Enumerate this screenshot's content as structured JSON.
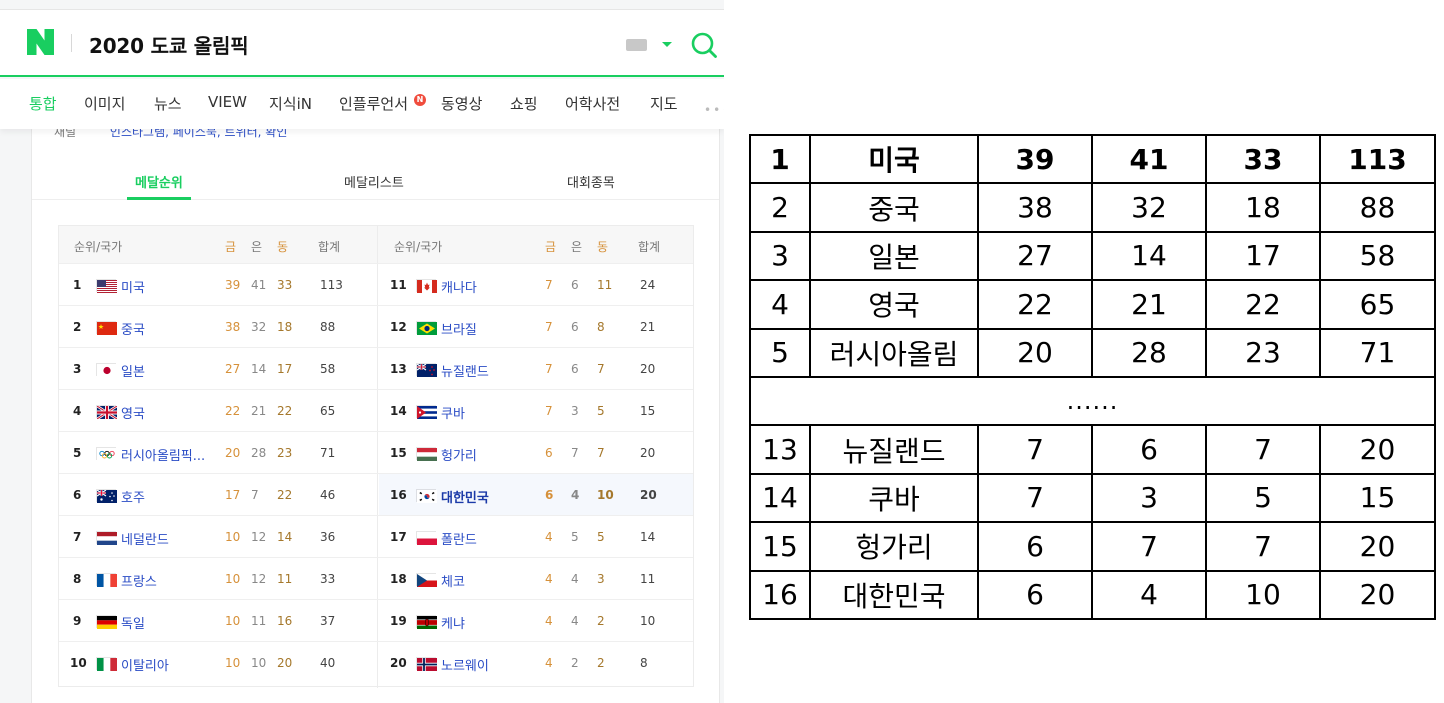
{
  "header": {
    "query": "2020 도쿄 올림픽"
  },
  "nav": {
    "items": [
      "통합",
      "이미지",
      "뉴스",
      "VIEW",
      "지식iN",
      "인플루언서",
      "동영상",
      "쇼핑",
      "어학사전",
      "지도"
    ],
    "new_badge": "N",
    "more": "•••"
  },
  "peek": {
    "label": "채널",
    "links": "인스타그램, 페이스북, 트위터, 확인"
  },
  "tabs": [
    "메달순위",
    "메달리스트",
    "대회종목"
  ],
  "medal_table": {
    "headers": {
      "rank_country": "순위/국가",
      "gold": "금",
      "silver": "은",
      "bronze": "동",
      "total": "합계"
    },
    "left": [
      {
        "rank": "1",
        "name": "미국",
        "gold": "39",
        "silver": "41",
        "bronze": "33",
        "total": "113"
      },
      {
        "rank": "2",
        "name": "중국",
        "gold": "38",
        "silver": "32",
        "bronze": "18",
        "total": "88"
      },
      {
        "rank": "3",
        "name": "일본",
        "gold": "27",
        "silver": "14",
        "bronze": "17",
        "total": "58"
      },
      {
        "rank": "4",
        "name": "영국",
        "gold": "22",
        "silver": "21",
        "bronze": "22",
        "total": "65"
      },
      {
        "rank": "5",
        "name": "러시아올림픽...",
        "gold": "20",
        "silver": "28",
        "bronze": "23",
        "total": "71"
      },
      {
        "rank": "6",
        "name": "호주",
        "gold": "17",
        "silver": "7",
        "bronze": "22",
        "total": "46"
      },
      {
        "rank": "7",
        "name": "네덜란드",
        "gold": "10",
        "silver": "12",
        "bronze": "14",
        "total": "36"
      },
      {
        "rank": "8",
        "name": "프랑스",
        "gold": "10",
        "silver": "12",
        "bronze": "11",
        "total": "33"
      },
      {
        "rank": "9",
        "name": "독일",
        "gold": "10",
        "silver": "11",
        "bronze": "16",
        "total": "37"
      },
      {
        "rank": "10",
        "name": "이탈리아",
        "gold": "10",
        "silver": "10",
        "bronze": "20",
        "total": "40"
      }
    ],
    "right": [
      {
        "rank": "11",
        "name": "캐나다",
        "gold": "7",
        "silver": "6",
        "bronze": "11",
        "total": "24"
      },
      {
        "rank": "12",
        "name": "브라질",
        "gold": "7",
        "silver": "6",
        "bronze": "8",
        "total": "21"
      },
      {
        "rank": "13",
        "name": "뉴질랜드",
        "gold": "7",
        "silver": "6",
        "bronze": "7",
        "total": "20"
      },
      {
        "rank": "14",
        "name": "쿠바",
        "gold": "7",
        "silver": "3",
        "bronze": "5",
        "total": "15"
      },
      {
        "rank": "15",
        "name": "헝가리",
        "gold": "6",
        "silver": "7",
        "bronze": "7",
        "total": "20"
      },
      {
        "rank": "16",
        "name": "대한민국",
        "gold": "6",
        "silver": "4",
        "bronze": "10",
        "total": "20"
      },
      {
        "rank": "17",
        "name": "폴란드",
        "gold": "4",
        "silver": "5",
        "bronze": "5",
        "total": "14"
      },
      {
        "rank": "18",
        "name": "체코",
        "gold": "4",
        "silver": "4",
        "bronze": "3",
        "total": "11"
      },
      {
        "rank": "19",
        "name": "케냐",
        "gold": "4",
        "silver": "4",
        "bronze": "2",
        "total": "10"
      },
      {
        "rank": "20",
        "name": "노르웨이",
        "gold": "4",
        "silver": "2",
        "bronze": "2",
        "total": "8"
      }
    ],
    "highlight_rank": "16"
  },
  "summary_table": {
    "top": [
      [
        "1",
        "미국",
        "39",
        "41",
        "33",
        "113"
      ],
      [
        "2",
        "중국",
        "38",
        "32",
        "18",
        "88"
      ],
      [
        "3",
        "일본",
        "27",
        "14",
        "17",
        "58"
      ],
      [
        "4",
        "영국",
        "22",
        "21",
        "22",
        "65"
      ],
      [
        "5",
        "러시아올림",
        "20",
        "28",
        "23",
        "71"
      ]
    ],
    "ellipsis": "......",
    "bottom": [
      [
        "13",
        "뉴질랜드",
        "7",
        "6",
        "7",
        "20"
      ],
      [
        "14",
        "쿠바",
        "7",
        "3",
        "5",
        "15"
      ],
      [
        "15",
        "헝가리",
        "6",
        "7",
        "7",
        "20"
      ],
      [
        "16",
        "대한민국",
        "6",
        "4",
        "10",
        "20"
      ]
    ]
  },
  "colors": {
    "accent": "#19ce60",
    "link": "#2a4cc5",
    "gold": "#d6913a",
    "bronze": "#a5782c",
    "badge": "#f04c3d"
  }
}
